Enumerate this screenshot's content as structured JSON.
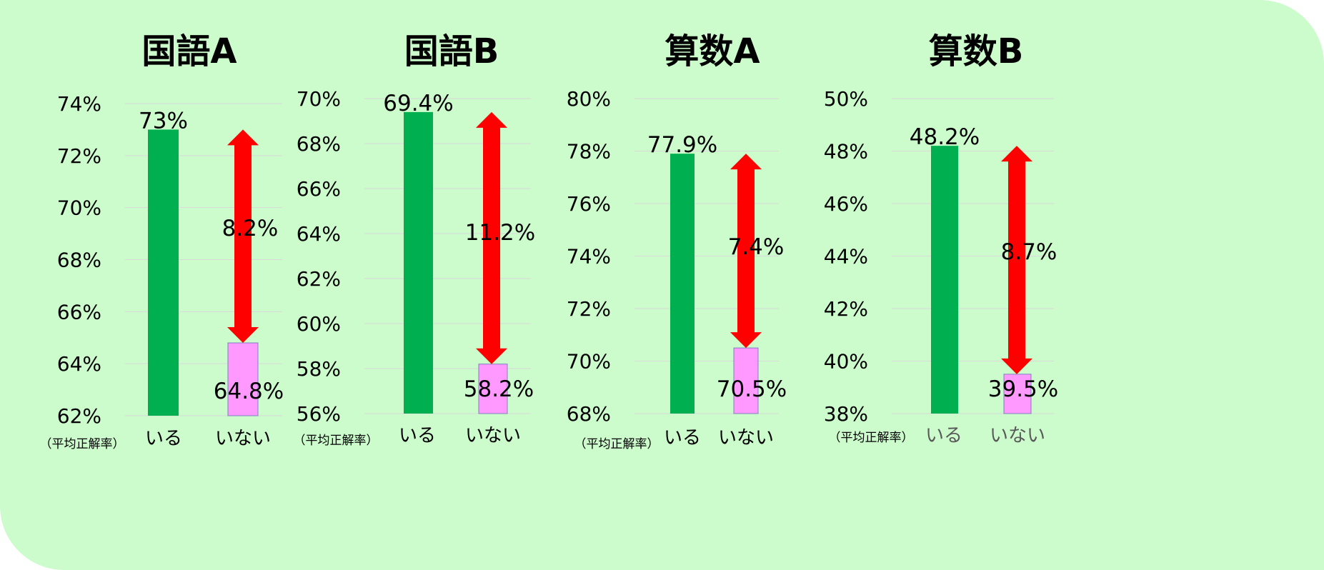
{
  "chart_data": [
    {
      "type": "bar",
      "title": "国語A",
      "categories": [
        "いる",
        "いない"
      ],
      "values": [
        73.0,
        64.8
      ],
      "value_labels": [
        "73%",
        "64.8%"
      ],
      "ylim": [
        62,
        74
      ],
      "yticks": [
        "62%",
        "64%",
        "66%",
        "68%",
        "70%",
        "72%",
        "74%"
      ],
      "ylabel": "（平均正解率）",
      "difference_label": "8.2%",
      "bar_colors": [
        "#00b050",
        "#ff99ff"
      ],
      "category_label_color": "#000000"
    },
    {
      "type": "bar",
      "title": "国語B",
      "categories": [
        "いる",
        "いない"
      ],
      "values": [
        69.4,
        58.2
      ],
      "value_labels": [
        "69.4%",
        "58.2%"
      ],
      "ylim": [
        56,
        70
      ],
      "yticks": [
        "56%",
        "58%",
        "60%",
        "62%",
        "64%",
        "66%",
        "68%",
        "70%"
      ],
      "ylabel": "（平均正解率）",
      "difference_label": "11.2%",
      "bar_colors": [
        "#00b050",
        "#ff99ff"
      ],
      "category_label_color": "#000000"
    },
    {
      "type": "bar",
      "title": "算数A",
      "categories": [
        "いる",
        "いない"
      ],
      "values": [
        77.9,
        70.5
      ],
      "value_labels": [
        "77.9%",
        "70.5%"
      ],
      "ylim": [
        68,
        80
      ],
      "yticks": [
        "68%",
        "70%",
        "72%",
        "74%",
        "76%",
        "78%",
        "80%"
      ],
      "ylabel": "（平均正解率）",
      "difference_label": "7.4%",
      "bar_colors": [
        "#00b050",
        "#ff99ff"
      ],
      "category_label_color": "#000000"
    },
    {
      "type": "bar",
      "title": "算数B",
      "categories": [
        "いる",
        "いない"
      ],
      "values": [
        48.2,
        39.5
      ],
      "value_labels": [
        "48.2%",
        "39.5%"
      ],
      "ylim": [
        38,
        50
      ],
      "yticks": [
        "38%",
        "40%",
        "42%",
        "44%",
        "46%",
        "48%",
        "50%"
      ],
      "ylabel": "（平均正解率）",
      "difference_label": "8.7%",
      "bar_colors": [
        "#00b050",
        "#ff99ff"
      ],
      "category_label_color": "#595959"
    }
  ],
  "arrow_color": "#ff0000",
  "background_color": "#ccfccc"
}
